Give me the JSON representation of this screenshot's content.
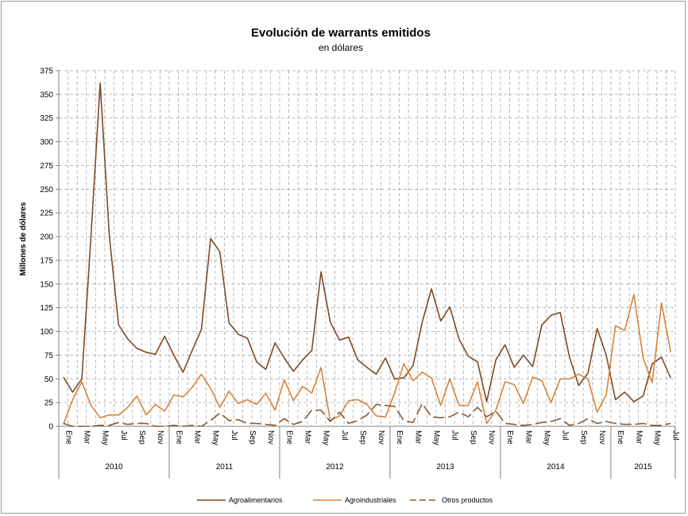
{
  "chart_data": {
    "type": "line",
    "title": "Evolución de warrants emitidos",
    "subtitle": "en dólares",
    "ylabel": "Millones de dólares",
    "xlabel": "",
    "ylim": [
      0,
      375
    ],
    "yticks": [
      0,
      25,
      50,
      75,
      100,
      125,
      150,
      175,
      200,
      225,
      250,
      275,
      300,
      325,
      350,
      375
    ],
    "grid": true,
    "legend_position": "bottom",
    "month_labels": [
      "Ene",
      "Mar",
      "May",
      "Jul",
      "Sep",
      "Nov"
    ],
    "years": [
      "2010",
      "2011",
      "2012",
      "2013",
      "2014",
      "2015"
    ],
    "months_per_year": [
      12,
      12,
      12,
      12,
      12,
      7
    ],
    "series": [
      {
        "name": "Agroalimentarios",
        "color": "#7f4a25",
        "style": "solid",
        "values": [
          52,
          36,
          50,
          200,
          362,
          200,
          107,
          92,
          82,
          78,
          76,
          95,
          75,
          57,
          80,
          102,
          198,
          184,
          109,
          97,
          93,
          68,
          60,
          88,
          72,
          58,
          70,
          80,
          163,
          110,
          91,
          94,
          70,
          62,
          55,
          72,
          50,
          51,
          64,
          110,
          145,
          111,
          126,
          92,
          74,
          68,
          26,
          70,
          86,
          62,
          75,
          63,
          107,
          117,
          120,
          73,
          43,
          56,
          103,
          75,
          28,
          36,
          26,
          32,
          66,
          73,
          51
        ]
      },
      {
        "name": "Agroindustriales",
        "color": "#d9833b",
        "style": "solid",
        "values": [
          2,
          28,
          47,
          22,
          9,
          12,
          12,
          20,
          32,
          12,
          23,
          16,
          33,
          31,
          41,
          55,
          40,
          20,
          37,
          24,
          28,
          23,
          35,
          17,
          49,
          27,
          42,
          35,
          62,
          6,
          11,
          27,
          28,
          23,
          11,
          10,
          35,
          66,
          48,
          57,
          51,
          22,
          50,
          22,
          22,
          47,
          3,
          17,
          47,
          44,
          24,
          52,
          48,
          25,
          50,
          50,
          55,
          50,
          15,
          33,
          106,
          101,
          139,
          72,
          46,
          130,
          78
        ]
      },
      {
        "name": "Otros productos",
        "color": "#8a5a33",
        "style": "dashed",
        "values": [
          3,
          0,
          0,
          0,
          1,
          1,
          4,
          2,
          3,
          3,
          0,
          0,
          1,
          0,
          1,
          0,
          6,
          14,
          6,
          7,
          3,
          3,
          2,
          1,
          8,
          2,
          5,
          17,
          17,
          5,
          15,
          3,
          6,
          12,
          23,
          22,
          21,
          6,
          4,
          24,
          10,
          9,
          10,
          15,
          10,
          20,
          10,
          16,
          3,
          2,
          1,
          2,
          4,
          5,
          8,
          1,
          3,
          8,
          3,
          5,
          3,
          2,
          2,
          3,
          1,
          1,
          3
        ]
      }
    ]
  }
}
